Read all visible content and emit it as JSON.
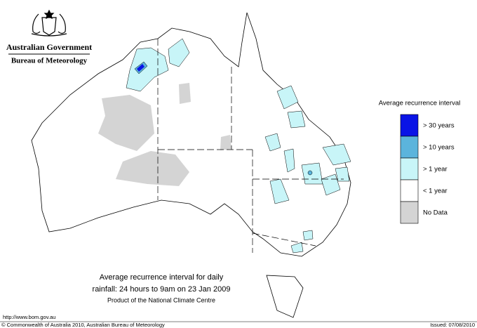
{
  "header": {
    "title": "Australian Government",
    "subtitle": "Bureau of Meteorology"
  },
  "legend": {
    "title": "Average recurrence interval",
    "items": [
      {
        "label": "> 30 years",
        "color": "#0a14e6"
      },
      {
        "label": "> 10 years",
        "color": "#5bb4dc"
      },
      {
        "label": "> 1 year",
        "color": "#c8f5f8"
      },
      {
        "label": "< 1 year",
        "color": "#ffffff"
      },
      {
        "label": "No Data",
        "color": "#d4d4d4"
      }
    ]
  },
  "caption": [
    "Average recurrence interval for daily",
    "rainfall: 24 hours to 9am on 23 Jan 2009",
    "Product of the National Climate Centre"
  ],
  "footer": {
    "url": "http://www.bom.gov.au",
    "copyright": "© Commonwealth of Australia 2010, Australian Bureau of Meteorology",
    "issued": "Issued: 07/08/2010"
  }
}
